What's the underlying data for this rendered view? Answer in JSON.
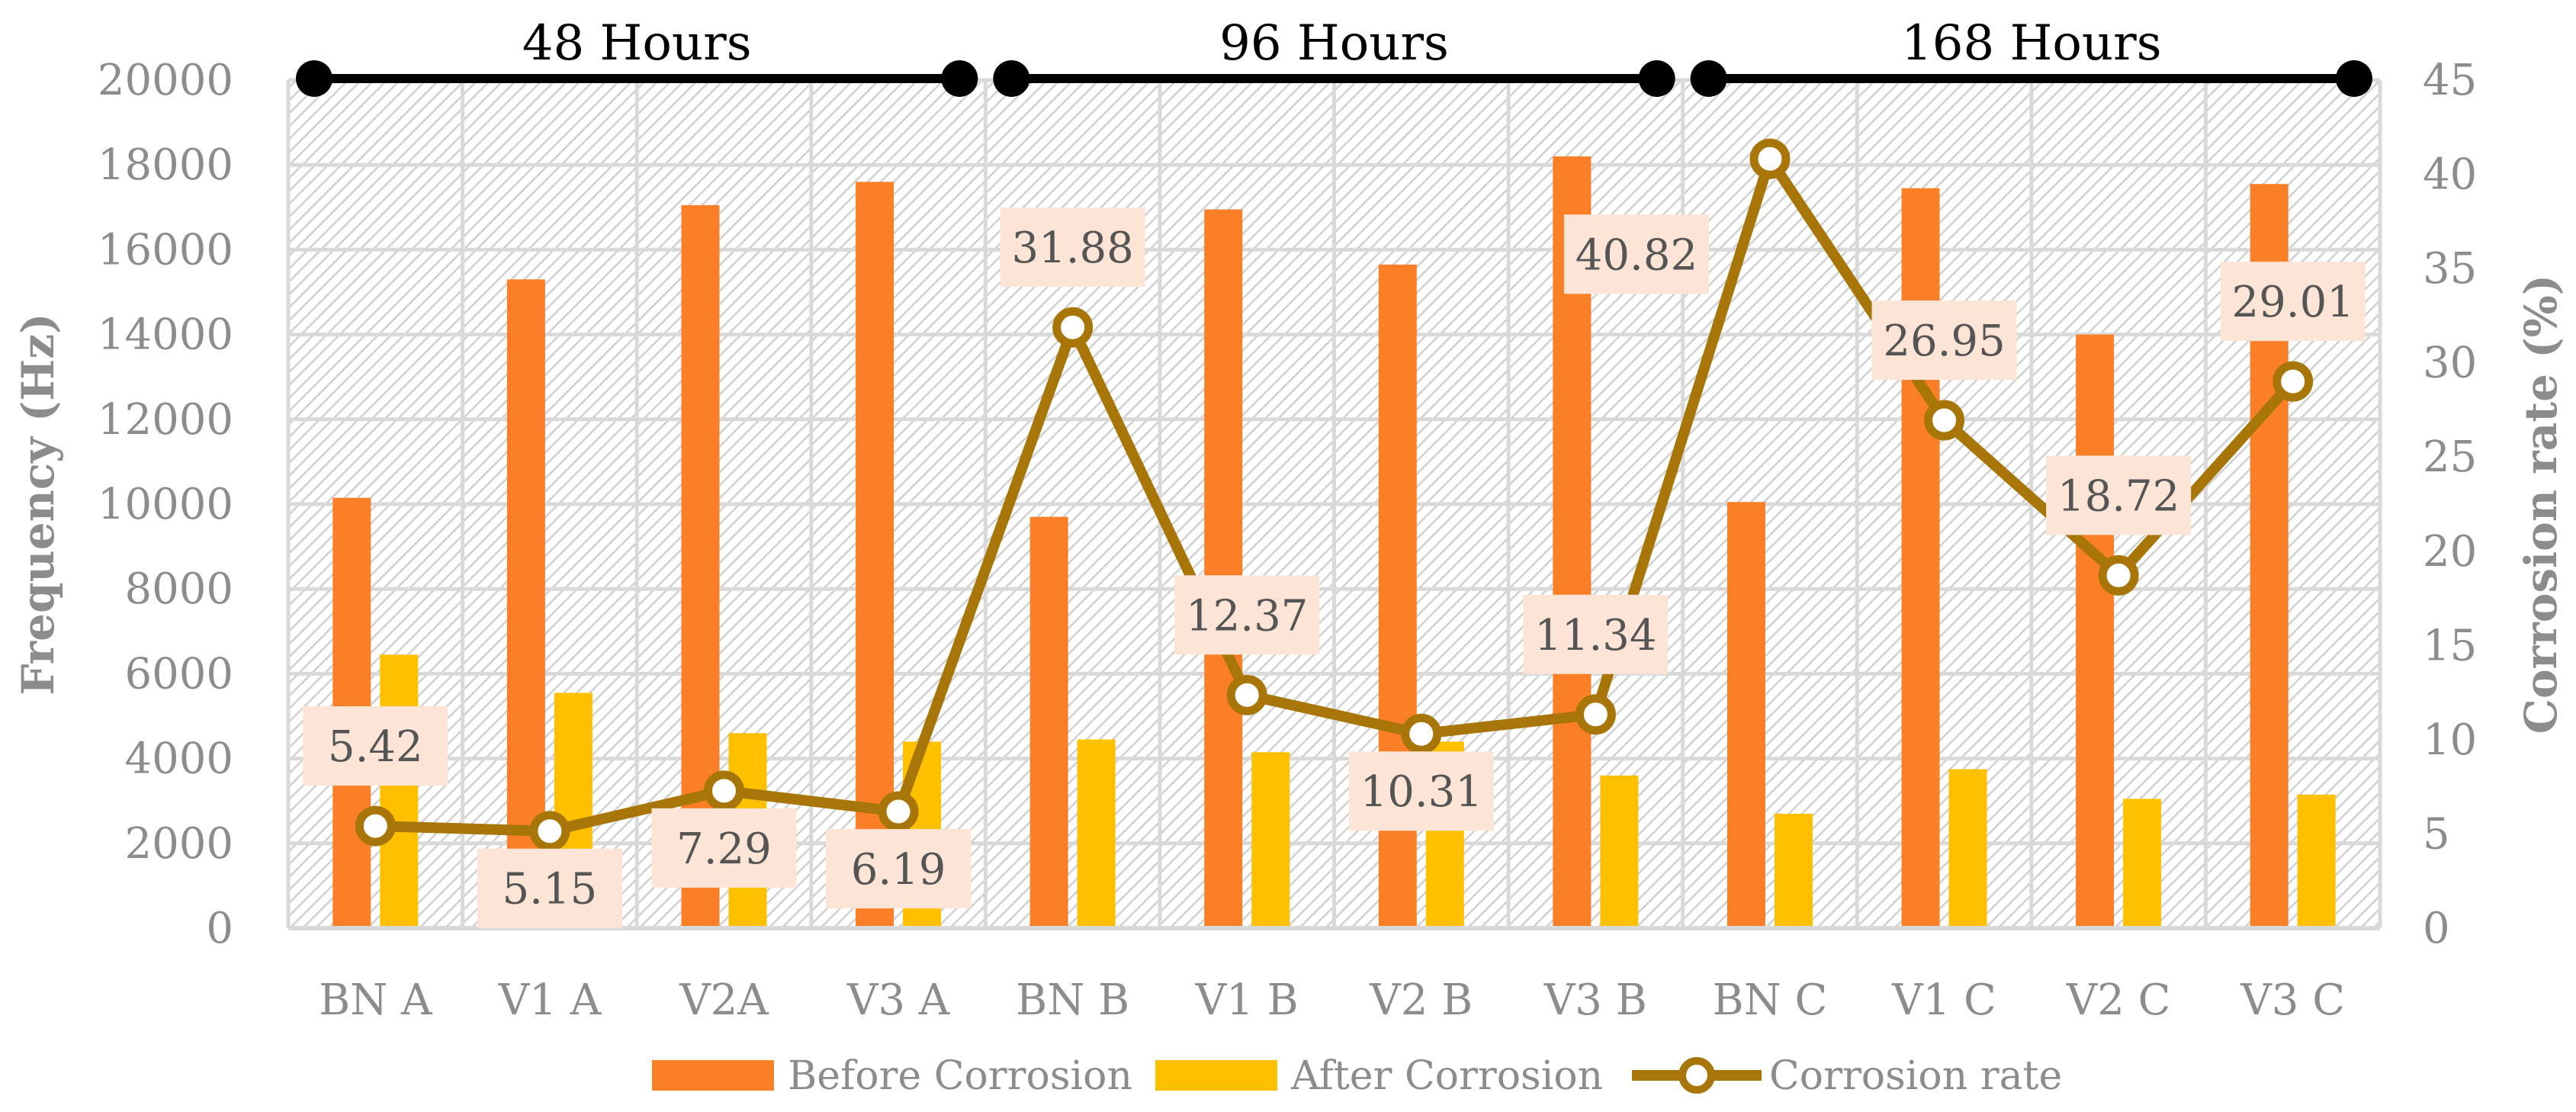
{
  "colors": {
    "before": "#FB7F26",
    "after": "#FFC000",
    "rate": "#A87608",
    "label_bg": "#FCE4D6",
    "grid": "#d9d9d9",
    "axis_text": "#8c8c8c",
    "group_line": "#000000"
  },
  "chart_data": {
    "type": "bar",
    "categories": [
      "BN A",
      "V1 A",
      "V2A",
      "V3 A",
      "BN B",
      "V1 B",
      "V2 B",
      "V3 B",
      "BN C",
      "V1 C",
      "V2 C",
      "V3 C"
    ],
    "series": [
      {
        "name": "Before Corrosion",
        "type": "bar",
        "axis": "left",
        "values": [
          10150,
          15300,
          17050,
          17600,
          9700,
          16950,
          15650,
          18200,
          10050,
          17450,
          14000,
          17550
        ]
      },
      {
        "name": "After Corrosion",
        "type": "bar",
        "axis": "left",
        "values": [
          6450,
          5550,
          4600,
          4400,
          4450,
          4150,
          4400,
          3600,
          2700,
          3750,
          3050,
          3150
        ]
      },
      {
        "name": "Corrosion rate",
        "type": "line",
        "axis": "right",
        "values": [
          5.42,
          5.15,
          7.29,
          6.19,
          31.88,
          12.37,
          10.31,
          11.34,
          40.82,
          26.95,
          18.72,
          29.01
        ],
        "labels": [
          "5.42",
          "5.15",
          "7.29",
          "6.19",
          "31.88",
          "12.37",
          "10.31",
          "11.34",
          "40.82",
          "26.95",
          "18.72",
          "29.01"
        ],
        "label_position": [
          "above",
          "below",
          "below",
          "below",
          "above",
          "above",
          "below",
          "above",
          "left",
          "above",
          "above",
          "above"
        ]
      }
    ],
    "ylabel": "Frequency (Hz)",
    "y2label": "Corrosion rate (%)",
    "ylim": [
      0,
      20000
    ],
    "y2lim": [
      0,
      45
    ],
    "yticks": [
      0,
      2000,
      4000,
      6000,
      8000,
      10000,
      12000,
      14000,
      16000,
      18000,
      20000
    ],
    "y2ticks": [
      0,
      5,
      10,
      15,
      20,
      25,
      30,
      35,
      40,
      45
    ],
    "groups": [
      {
        "label": "48 Hours",
        "from": 0,
        "to": 3
      },
      {
        "label": "96 Hours",
        "from": 4,
        "to": 7
      },
      {
        "label": "168 Hours",
        "from": 8,
        "to": 11
      }
    ],
    "grid": true,
    "legend": {
      "position": "bottom",
      "entries": [
        "Before Corrosion",
        "After Corrosion",
        "Corrosion rate"
      ]
    }
  }
}
